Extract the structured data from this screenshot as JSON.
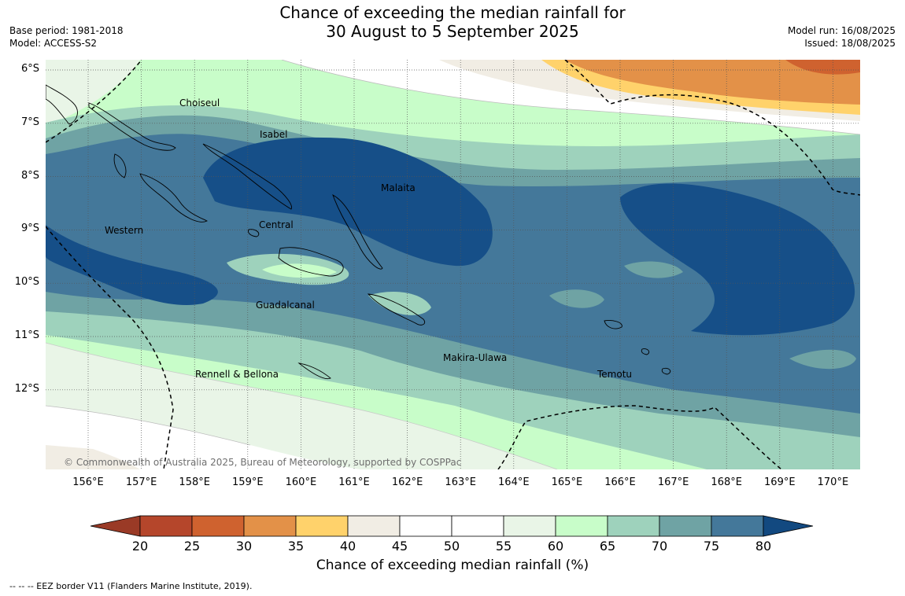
{
  "header": {
    "title_line1": "Chance of exceeding the median rainfall for",
    "title_line2": "30 August to 5 September 2025",
    "base_period": "Base period: 1981-2018",
    "model": "Model: ACCESS-S2",
    "model_run": "Model run: 16/08/2025",
    "issued": "Issued: 18/08/2025"
  },
  "map": {
    "lat_labels": [
      "6°S",
      "7°S",
      "8°S",
      "9°S",
      "10°S",
      "11°S",
      "12°S"
    ],
    "lon_labels": [
      "156°E",
      "157°E",
      "158°E",
      "159°E",
      "160°E",
      "161°E",
      "162°E",
      "163°E",
      "164°E",
      "165°E",
      "166°E",
      "167°E",
      "168°E",
      "169°E",
      "170°E"
    ],
    "provinces": [
      "Choiseul",
      "Isabel",
      "Malaita",
      "Western",
      "Central",
      "Guadalcanal",
      "Makira-Ulawa",
      "Rennell & Bellona",
      "Temotu"
    ],
    "copyright": "© Commonwealth of Australia 2025, Bureau of Meteorology, supported by COSPPac"
  },
  "colorbar": {
    "title": "Chance of exceeding median rainfall (%)",
    "labels": [
      "20",
      "25",
      "30",
      "35",
      "40",
      "45",
      "50",
      "55",
      "60",
      "65",
      "70",
      "75",
      "80"
    ],
    "colors": [
      "#b5462b",
      "#cf622f",
      "#e39148",
      "#ffd26b",
      "#f1ede4",
      "#ffffff",
      "#ffffff",
      "#e9f5e7",
      "#c8fdc9",
      "#9ed2bc",
      "#6fa3a4",
      "#44789a",
      "#164f88"
    ],
    "under_color": "#9a3a26",
    "over_color": "#124980"
  },
  "footnote": "--  --  -- EEZ border V11 (Flanders Marine Institute, 2019)."
}
